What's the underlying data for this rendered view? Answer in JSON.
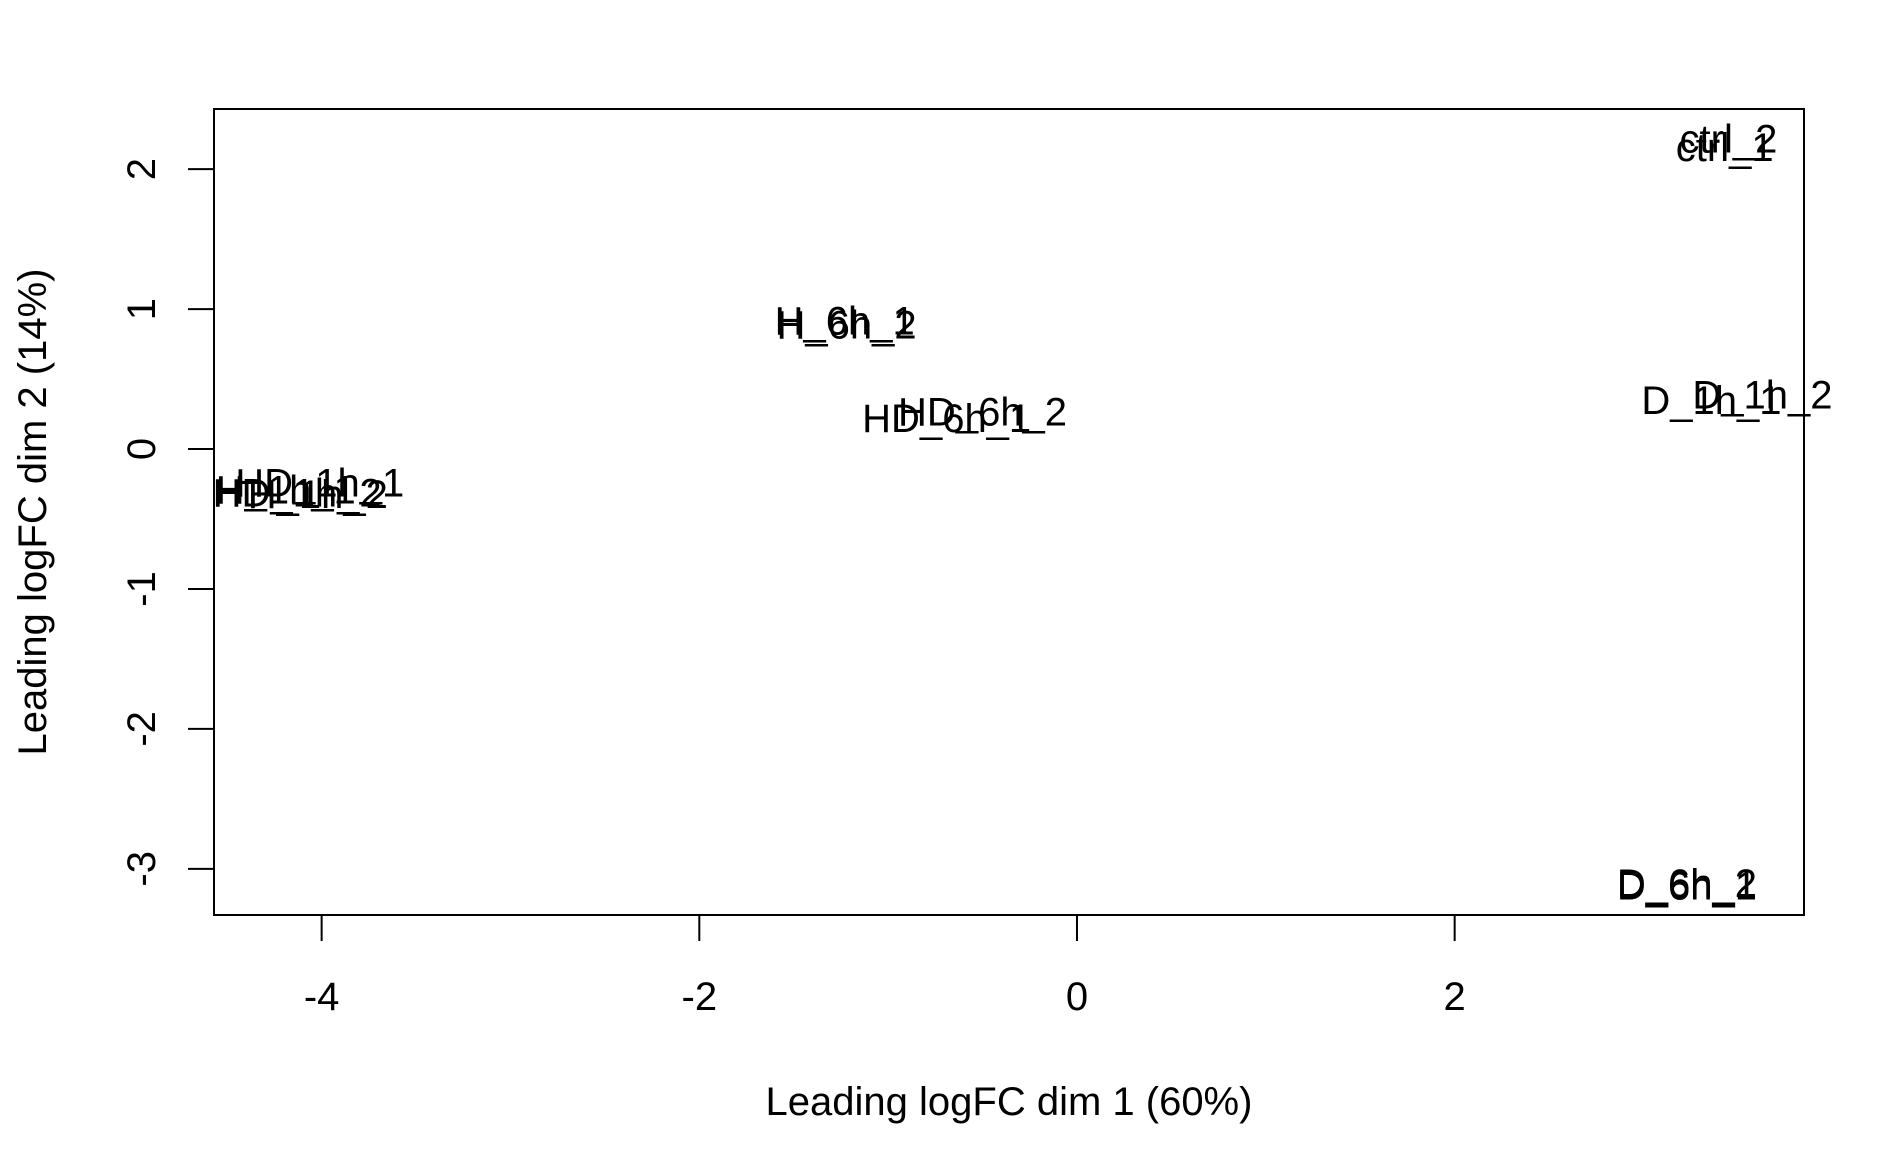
{
  "chart_data": {
    "type": "scatter",
    "title": "",
    "xlabel": "Leading logFC dim 1 (60%)",
    "ylabel": "Leading logFC dim 2 (14%)",
    "xlim": [
      -4.57,
      3.85
    ],
    "ylim": [
      -3.33,
      2.43
    ],
    "xticks": [
      -4,
      -2,
      0,
      2
    ],
    "yticks": [
      -3,
      -2,
      -1,
      0,
      1,
      2
    ],
    "grid": false,
    "legend": "none",
    "colors": {
      "text": "#000000",
      "axis": "#000000",
      "background": "#ffffff"
    },
    "points": [
      {
        "label": "ctrl_2",
        "x": 3.45,
        "y": 2.22
      },
      {
        "label": "ctrl_1",
        "x": 3.43,
        "y": 2.16
      },
      {
        "label": "H_6h_1",
        "x": -1.23,
        "y": 0.92
      },
      {
        "label": "H_6h_2",
        "x": -1.22,
        "y": 0.89
      },
      {
        "label": "D_1h_2",
        "x": 3.63,
        "y": 0.39
      },
      {
        "label": "D_1h_1",
        "x": 3.36,
        "y": 0.35
      },
      {
        "label": "HD_6h_2",
        "x": -0.5,
        "y": 0.27
      },
      {
        "label": "HD_6h_1",
        "x": -0.69,
        "y": 0.22
      },
      {
        "label": "HD_1h_1",
        "x": -4.01,
        "y": -0.24
      },
      {
        "label": "H_1h_1",
        "x": -4.19,
        "y": -0.29
      },
      {
        "label": "HD_1h_2",
        "x": -4.13,
        "y": -0.31
      },
      {
        "label": "H_1h_2",
        "x": -4.02,
        "y": -0.32
      },
      {
        "label": "D_6h_1",
        "x": 3.23,
        "y": -3.12
      },
      {
        "label": "D_6h_2",
        "x": 3.23,
        "y": -3.1
      }
    ]
  }
}
